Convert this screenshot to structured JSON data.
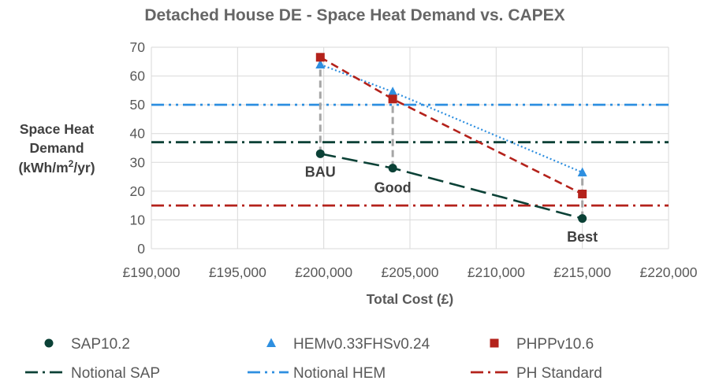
{
  "chart_data": {
    "type": "line",
    "title": "Detached House DE - Space Heat Demand vs. CAPEX",
    "xlabel": "Total Cost (£)",
    "ylabel_lines": [
      "Space Heat",
      "Demand"
    ],
    "ylabel_unit": {
      "pre": "(kWh/m",
      "sup": "2",
      "post": "/yr)"
    },
    "xlim": [
      190000,
      220000
    ],
    "ylim": [
      0,
      70
    ],
    "x_ticks": [
      190000,
      195000,
      200000,
      205000,
      210000,
      215000,
      220000
    ],
    "x_tick_labels": [
      "£190,000",
      "£195,000",
      "£200,000",
      "£205,000",
      "£210,000",
      "£215,000",
      "£220,000"
    ],
    "y_ticks": [
      0,
      10,
      20,
      30,
      40,
      50,
      60,
      70
    ],
    "y_tick_labels": [
      "0",
      "10",
      "20",
      "30",
      "40",
      "50",
      "60",
      "70"
    ],
    "grid": true,
    "legend_position": "bottom",
    "series": [
      {
        "name": "SAP10.2",
        "marker": "circle",
        "color": "#0b4136",
        "line_style": "long-dash",
        "x": [
          199800,
          204000,
          215000
        ],
        "y": [
          33,
          28,
          10.5
        ]
      },
      {
        "name": "HEMv0.33FHSv0.24",
        "marker": "triangle",
        "color": "#2e8fe0",
        "line_style": "dotted",
        "x": [
          199800,
          204000,
          215000
        ],
        "y": [
          64,
          54.5,
          26.5
        ]
      },
      {
        "name": "PHPPv10.6",
        "marker": "square",
        "color": "#b4221b",
        "line_style": "dash",
        "x": [
          199800,
          204000,
          215000
        ],
        "y": [
          66.5,
          52,
          19
        ]
      }
    ],
    "reference_lines": [
      {
        "name": "Notional SAP",
        "y": 37,
        "color": "#0b4136",
        "line_style": "dash-dot"
      },
      {
        "name": "Notional HEM",
        "y": 50,
        "color": "#2e8fe0",
        "line_style": "dash-dot-dot"
      },
      {
        "name": "PH Standard",
        "y": 15,
        "color": "#b4221b",
        "line_style": "dash-dot"
      }
    ],
    "drop_lines": {
      "color": "#a6a6a6",
      "x": [
        199800,
        204000,
        215000
      ],
      "y_from": [
        33,
        28,
        10.5
      ],
      "y_to": [
        66.5,
        54.5,
        26.5
      ]
    },
    "annotations": [
      {
        "text": "BAU",
        "x": 199800,
        "y": 25
      },
      {
        "text": "Good",
        "x": 204000,
        "y": 19.5
      },
      {
        "text": "Best",
        "x": 215000,
        "y": 2.5
      }
    ],
    "colors": {
      "axis_text": "#595959",
      "title": "#666666",
      "gridline": "#d9d9d9"
    }
  }
}
